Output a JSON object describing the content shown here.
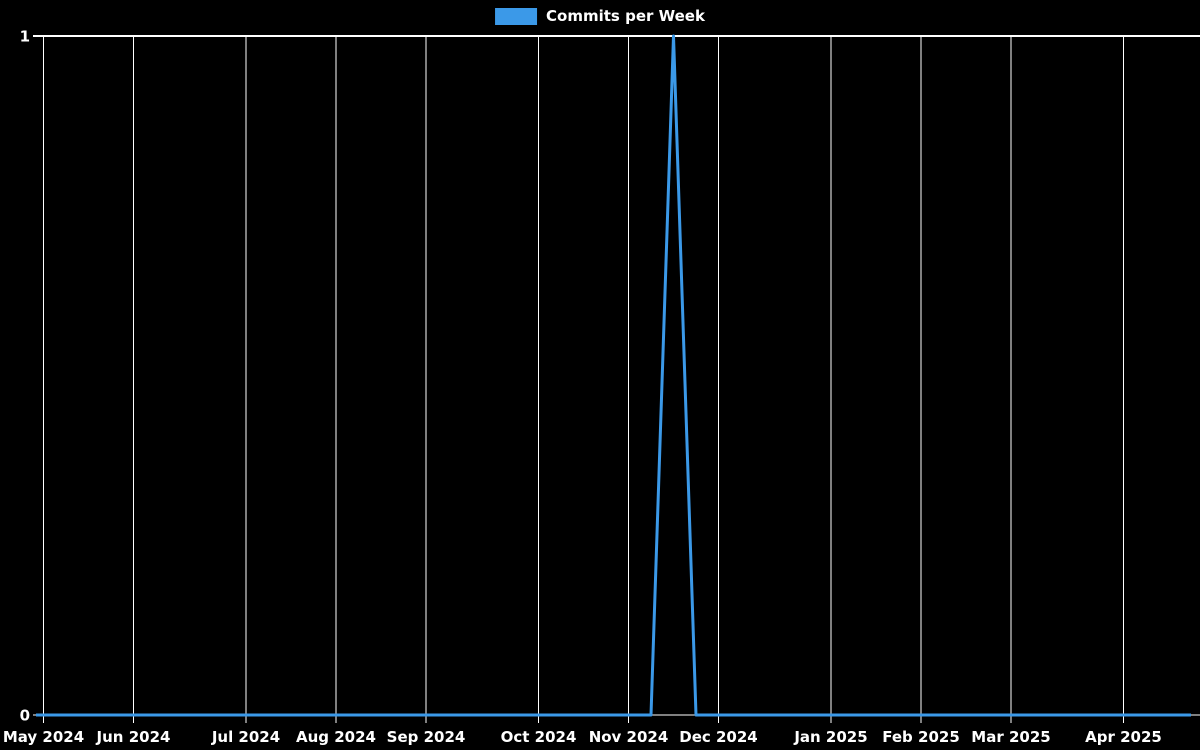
{
  "legend": {
    "label": "Commits per Week",
    "position": "top-center"
  },
  "colors": {
    "background": "#000000",
    "grid": "#ffffff",
    "line": "#3b99e8",
    "text": "#ffffff"
  },
  "chart_data": {
    "type": "line",
    "title": "Commits per Week",
    "xlabel": "",
    "ylabel": "",
    "ylim": [
      0,
      1
    ],
    "grid": true,
    "legend_position": "top-center",
    "y_ticks": [
      {
        "value": 1,
        "label": "1"
      },
      {
        "value": 0,
        "label": "0"
      }
    ],
    "x_ticks": {
      "labels": [
        "May 2024",
        "Jun 2024",
        "Jul 2024",
        "Aug 2024",
        "Sep 2024",
        "Oct 2024",
        "Nov 2024",
        "Dec 2024",
        "Jan 2025",
        "Feb 2025",
        "Mar 2025",
        "Apr 2025"
      ],
      "week_indices": [
        1,
        5,
        10,
        14,
        18,
        23,
        27,
        31,
        36,
        40,
        44,
        49
      ]
    },
    "series": [
      {
        "name": "Commits per Week",
        "color": "#3b99e8",
        "week_starts": [
          "2024-04-28",
          "2024-05-05",
          "2024-05-12",
          "2024-05-19",
          "2024-05-26",
          "2024-06-02",
          "2024-06-09",
          "2024-06-16",
          "2024-06-23",
          "2024-06-30",
          "2024-07-07",
          "2024-07-14",
          "2024-07-21",
          "2024-07-28",
          "2024-08-04",
          "2024-08-11",
          "2024-08-18",
          "2024-08-25",
          "2024-09-01",
          "2024-09-08",
          "2024-09-15",
          "2024-09-22",
          "2024-09-29",
          "2024-10-06",
          "2024-10-13",
          "2024-10-20",
          "2024-10-27",
          "2024-11-03",
          "2024-11-10",
          "2024-11-17",
          "2024-11-24",
          "2024-12-01",
          "2024-12-08",
          "2024-12-15",
          "2024-12-22",
          "2024-12-29",
          "2025-01-05",
          "2025-01-12",
          "2025-01-19",
          "2025-01-26",
          "2025-02-02",
          "2025-02-09",
          "2025-02-16",
          "2025-02-23",
          "2025-03-02",
          "2025-03-09",
          "2025-03-16",
          "2025-03-23",
          "2025-03-30",
          "2025-04-06",
          "2025-04-13",
          "2025-04-20",
          "2025-04-27"
        ],
        "values": [
          0,
          0,
          0,
          0,
          0,
          0,
          0,
          0,
          0,
          0,
          0,
          0,
          0,
          0,
          0,
          0,
          0,
          0,
          0,
          0,
          0,
          0,
          0,
          0,
          0,
          0,
          0,
          0,
          0,
          1,
          0,
          0,
          0,
          0,
          0,
          0,
          0,
          0,
          0,
          0,
          0,
          0,
          0,
          0,
          0,
          0,
          0,
          0,
          0,
          0,
          0,
          0,
          0
        ]
      }
    ]
  }
}
